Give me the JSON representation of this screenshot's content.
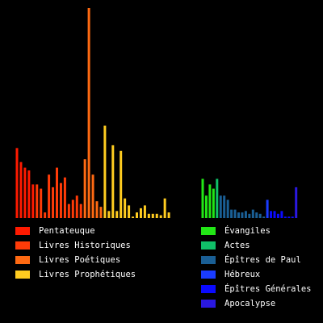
{
  "chart_data": {
    "type": "bar",
    "title": "",
    "xlabel": "",
    "ylabel": "",
    "ylim": [
      0,
      150
    ],
    "grid": false,
    "legend_placement": "bottom",
    "panels": [
      {
        "name": "ot",
        "series": [
          {
            "name": "Pentateuque",
            "color": "#ff1a00",
            "values": [
              50,
              40,
              36,
              34,
              24
            ]
          },
          {
            "name": "Livres Historiques",
            "color": "#ff3b08",
            "values": [
              24,
              21,
              4,
              31,
              22,
              36,
              25,
              29,
              10,
              13,
              16,
              10
            ]
          },
          {
            "name": "Livres Poétiques",
            "color": "#ff6a12",
            "values": [
              42,
              150,
              31,
              12,
              8
            ]
          },
          {
            "name": "Livres Prophétiques",
            "color": "#ffcc20",
            "values": [
              66,
              5,
              52,
              5,
              48,
              14,
              9,
              1,
              4,
              7,
              9,
              3,
              3,
              3,
              2,
              14,
              4
            ]
          }
        ]
      },
      {
        "name": "nt",
        "series": [
          {
            "name": "Évangiles",
            "color": "#22e616",
            "values": [
              28,
              16,
              24,
              21
            ]
          },
          {
            "name": "Actes",
            "color": "#10c068",
            "values": [
              28
            ]
          },
          {
            "name": "Épîtres de Paul",
            "color": "#1a5f95",
            "values": [
              16,
              16,
              13,
              6,
              6,
              4,
              4,
              5,
              3,
              6,
              4,
              3,
              1
            ]
          },
          {
            "name": "Hébreux",
            "color": "#1a3cff",
            "values": [
              13
            ]
          },
          {
            "name": "Épîtres Générales",
            "color": "#0a0aff",
            "values": [
              5,
              5,
              3,
              5,
              1,
              1,
              1
            ]
          },
          {
            "name": "Apocalypse",
            "color": "#2a18e0",
            "values": [
              22
            ]
          }
        ]
      }
    ]
  },
  "legend": {
    "ot": [
      {
        "label": "Pentateuque",
        "color": "#ff1a00"
      },
      {
        "label": "Livres Historiques",
        "color": "#ff3b08"
      },
      {
        "label": "Livres Poétiques",
        "color": "#ff6a12"
      },
      {
        "label": "Livres Prophétiques",
        "color": "#ffcc20"
      }
    ],
    "nt": [
      {
        "label": "Évangiles",
        "color": "#22e616"
      },
      {
        "label": "Actes",
        "color": "#10c068"
      },
      {
        "label": "Épîtres de Paul",
        "color": "#1a5f95"
      },
      {
        "label": "Hébreux",
        "color": "#1a3cff"
      },
      {
        "label": "Épîtres Générales",
        "color": "#0a0aff"
      },
      {
        "label": "Apocalypse",
        "color": "#2a18e0"
      }
    ]
  }
}
